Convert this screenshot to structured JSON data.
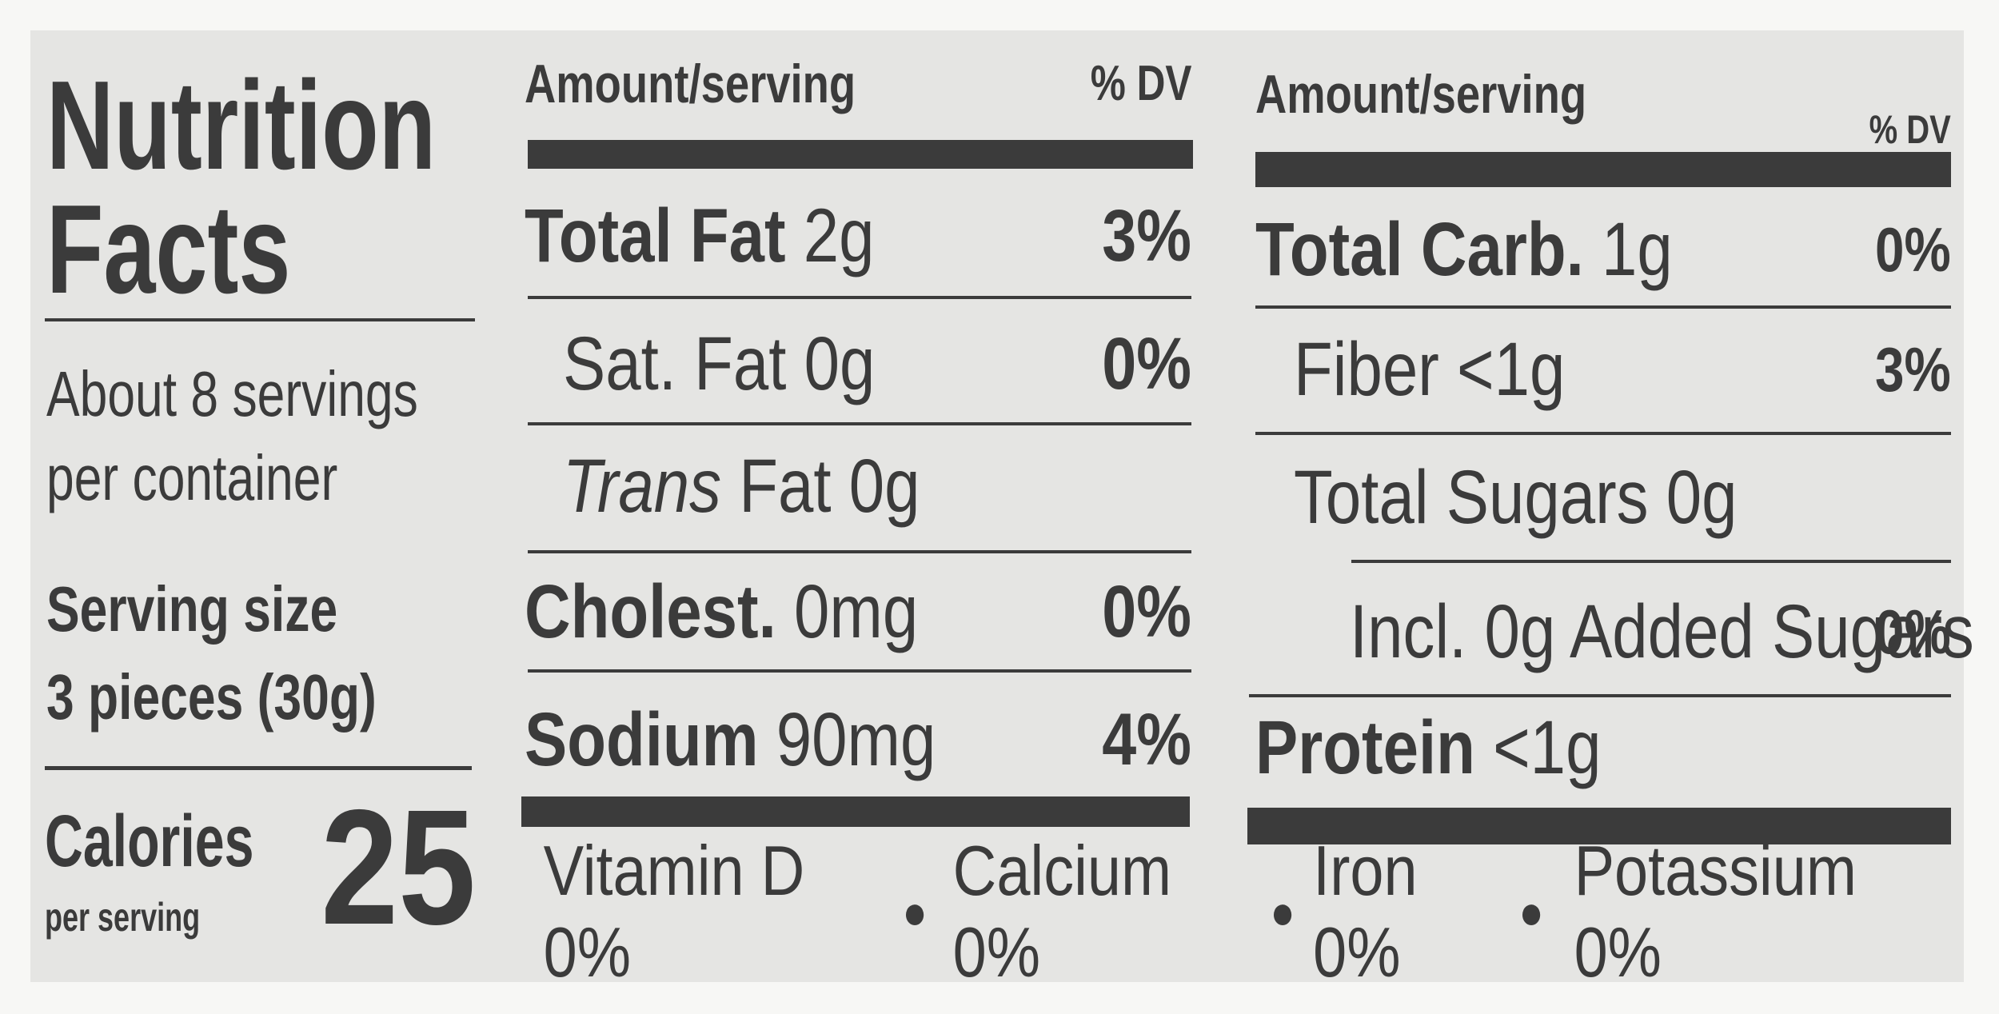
{
  "title": "Nutrition Facts",
  "servings": "About 8 servings per container",
  "serving_size": {
    "label": "Serving size",
    "amount": "3 pieces (30g)"
  },
  "calories": {
    "label": "Calories",
    "sublabel": "per serving",
    "value": 25
  },
  "left": {
    "header": {
      "amount": "Amount/serving",
      "dv": "% DV"
    },
    "rows": [
      {
        "label": "Total Fat",
        "amount": "2g",
        "dv": "3%"
      },
      {
        "label": "Sat. Fat",
        "amount": "0g",
        "dv": "0%"
      },
      {
        "label": "Trans",
        "amount": "Fat 0g"
      },
      {
        "label": "Cholest.",
        "amount": "0mg",
        "dv": "0%"
      },
      {
        "label": "Sodium",
        "amount": "90mg",
        "dv": "4%"
      }
    ]
  },
  "right": {
    "header": {
      "amount": "Amount/serving",
      "dv": "% DV"
    },
    "rows": [
      {
        "label": "Total Carb.",
        "amount": "1g",
        "dv": "0%"
      },
      {
        "label": "Fiber",
        "amount": "<1g",
        "dv": "3%"
      },
      {
        "label": "Total Sugars",
        "amount": "0g"
      },
      {
        "label": "Incl. 0g Added Sugars",
        "dv": "0%"
      },
      {
        "label": "Protein",
        "amount": "<1g"
      }
    ]
  },
  "vitamins": [
    "Vitamin D 0%",
    "Calcium 0%",
    "Iron 0%",
    "Potassium 0%"
  ]
}
